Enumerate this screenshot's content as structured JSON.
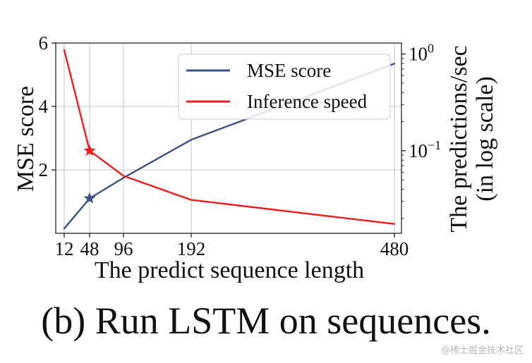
{
  "chart_data": {
    "type": "line",
    "title": "",
    "xlabel": "The predict sequence length",
    "ylabel": "MSE score",
    "y2label_line1": "The predictions/sec",
    "y2label_line2": "(in log scale)",
    "x": [
      12,
      48,
      96,
      192,
      480
    ],
    "x_ticks": [
      12,
      48,
      96,
      192,
      480
    ],
    "x_tick_labels": [
      "12",
      "48",
      "96",
      "192",
      "480"
    ],
    "xlim": [
      0,
      490
    ],
    "ylim": [
      0,
      6
    ],
    "y_ticks": [
      2,
      4,
      6
    ],
    "y_tick_labels": [
      "2",
      "4",
      "6"
    ],
    "y2_scale": "log",
    "y2lim": [
      0.014,
      1.3
    ],
    "y2_ticks": [
      0.1,
      1
    ],
    "y2_tick_labels": [
      {
        "base": "10",
        "exp": "−1",
        "value": 0.1
      },
      {
        "base": "10",
        "exp": "0",
        "value": 1
      }
    ],
    "grid": true,
    "legend_position": "top-right",
    "series": [
      {
        "name": "MSE score",
        "axis": "left",
        "color": "#3a5288",
        "values": [
          0.15,
          1.1,
          1.75,
          2.95,
          5.35
        ],
        "highlight": {
          "x": 48,
          "value": 1.1,
          "marker": "star"
        }
      },
      {
        "name": "Inference speed",
        "axis": "right",
        "color": "#ee1c1c",
        "values": [
          1.1,
          0.1,
          0.055,
          0.031,
          0.0175
        ],
        "highlight": {
          "x": 48,
          "value": 0.1,
          "marker": "star"
        }
      }
    ]
  },
  "caption": "(b) Run LSTM on sequences.",
  "watermark": "@稀土掘金技术社区"
}
